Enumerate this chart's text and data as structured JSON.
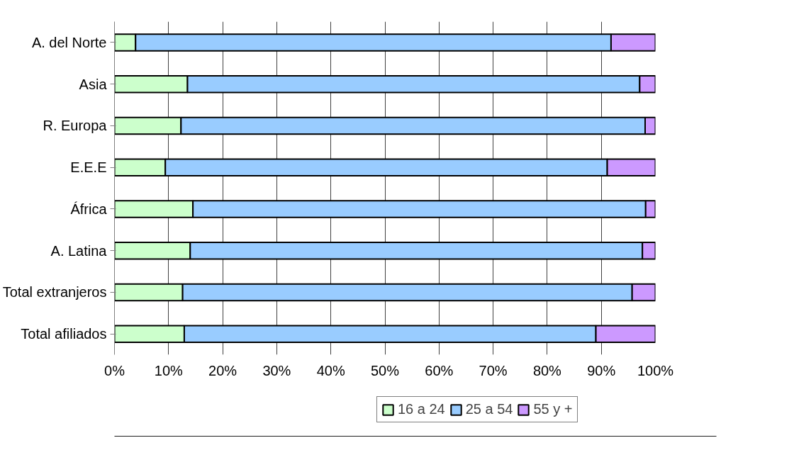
{
  "chart_data": {
    "type": "bar",
    "orientation": "horizontal",
    "stacked": true,
    "categories": [
      "A. del Norte",
      "Asia",
      "R. Europa",
      "E.E.E",
      "África",
      "A. Latina",
      "Total extranjeros",
      "Total afiliados"
    ],
    "series": [
      {
        "name": "16 a 24",
        "color": "#ccffcc",
        "values": [
          3.9,
          13.5,
          12.3,
          9.4,
          14.5,
          14.0,
          12.6,
          12.9
        ]
      },
      {
        "name": "25 a 54",
        "color": "#99ccff",
        "values": [
          87.9,
          83.6,
          85.8,
          81.7,
          83.7,
          83.6,
          83.1,
          76.1
        ]
      },
      {
        "name": "55 y +",
        "color": "#cc99ff",
        "values": [
          8.2,
          2.9,
          1.9,
          8.9,
          1.8,
          2.4,
          4.3,
          11.0
        ]
      }
    ],
    "xlim": [
      0,
      100
    ],
    "xticks": [
      {
        "value": 0,
        "label": "0%"
      },
      {
        "value": 10,
        "label": "10%"
      },
      {
        "value": 20,
        "label": "20%"
      },
      {
        "value": 30,
        "label": "30%"
      },
      {
        "value": 40,
        "label": "40%"
      },
      {
        "value": 50,
        "label": "50%"
      },
      {
        "value": 60,
        "label": "60%"
      },
      {
        "value": 70,
        "label": "70%"
      },
      {
        "value": 80,
        "label": "80%"
      },
      {
        "value": 90,
        "label": "90%"
      },
      {
        "value": 100,
        "label": "100%"
      }
    ],
    "grid": "x",
    "legend": "bottom"
  }
}
